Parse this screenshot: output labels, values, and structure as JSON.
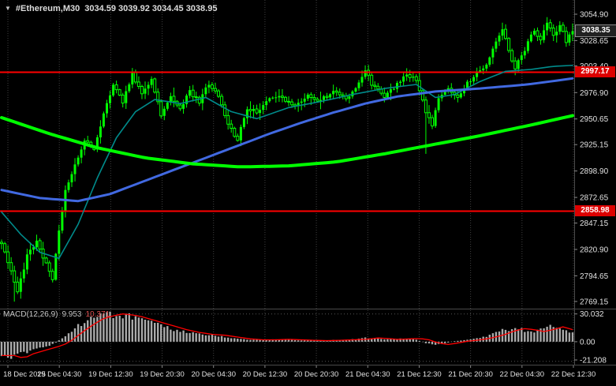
{
  "header": {
    "marker_icon": "down-triangle",
    "title": "#Ethereum,M30",
    "ohlc": "3034.59 3039.92 3034.45 3038.95"
  },
  "price_axis": {
    "labels": [
      "3054.90",
      "3028.65",
      "3003.40",
      "2976.90",
      "2950.65",
      "2925.15",
      "2898.90",
      "2872.65",
      "2847.15",
      "2820.90",
      "2794.65",
      "2769.15"
    ],
    "current_price": "3038.35",
    "level_tags": [
      "2997.17",
      "2858.98"
    ]
  },
  "time_axis": {
    "labels": [
      "18 Dec 2025",
      "19 Dec 04:30",
      "19 Dec 12:30",
      "19 Dec 20:30",
      "20 Dec 04:30",
      "20 Dec 12:30",
      "20 Dec 20:30",
      "21 Dec 04:30",
      "21 Dec 12:30",
      "21 Dec 20:30",
      "22 Dec 04:30",
      "22 Dec 12:30"
    ]
  },
  "colors": {
    "background": "#000000",
    "grid": "#404040",
    "candle": "#00ff00",
    "level_line": "#ff0000",
    "macd_histogram": "#aaaaaa",
    "macd_signal": "#ff0000",
    "axis_text": "#e2e2e2",
    "divider": "#4a4a4a",
    "tick": "#888888"
  },
  "chart_data": [
    {
      "type": "candlestick",
      "symbol": "#Ethereum",
      "timeframe": "M30",
      "bars": 180,
      "ylim": [
        2762,
        3069
      ],
      "last_bar_ohlc": [
        3034.59,
        3039.92,
        3034.45,
        3038.95
      ],
      "wick_amp": 6,
      "close_jitter": 4,
      "close_anchors": [
        [
          0,
          2828
        ],
        [
          3,
          2800
        ],
        [
          5,
          2778
        ],
        [
          8,
          2815
        ],
        [
          11,
          2828
        ],
        [
          14,
          2806
        ],
        [
          16,
          2790
        ],
        [
          18,
          2840
        ],
        [
          20,
          2880
        ],
        [
          23,
          2906
        ],
        [
          26,
          2930
        ],
        [
          29,
          2920
        ],
        [
          32,
          2955
        ],
        [
          35,
          2985
        ],
        [
          38,
          2968
        ],
        [
          41,
          2996
        ],
        [
          44,
          2974
        ],
        [
          47,
          2990
        ],
        [
          50,
          2954
        ],
        [
          53,
          2974
        ],
        [
          56,
          2960
        ],
        [
          59,
          2978
        ],
        [
          62,
          2968
        ],
        [
          65,
          2986
        ],
        [
          68,
          2975
        ],
        [
          71,
          2945
        ],
        [
          74,
          2930
        ],
        [
          77,
          2962
        ],
        [
          80,
          2957
        ],
        [
          84,
          2970
        ],
        [
          88,
          2972
        ],
        [
          92,
          2964
        ],
        [
          96,
          2975
        ],
        [
          100,
          2969
        ],
        [
          104,
          2978
        ],
        [
          108,
          2971
        ],
        [
          112,
          2986
        ],
        [
          114,
          3001
        ],
        [
          116,
          2984
        ],
        [
          120,
          2974
        ],
        [
          124,
          2985
        ],
        [
          127,
          2996
        ],
        [
          130,
          2989
        ],
        [
          133,
          2958
        ],
        [
          135,
          2945
        ],
        [
          137,
          2970
        ],
        [
          140,
          2980
        ],
        [
          143,
          2974
        ],
        [
          146,
          2986
        ],
        [
          149,
          2996
        ],
        [
          152,
          3006
        ],
        [
          155,
          3026
        ],
        [
          157,
          3040
        ],
        [
          159,
          3018
        ],
        [
          161,
          3002
        ],
        [
          163,
          3014
        ],
        [
          165,
          3026
        ],
        [
          167,
          3040
        ],
        [
          169,
          3028
        ],
        [
          171,
          3048
        ],
        [
          173,
          3034
        ],
        [
          175,
          3044
        ],
        [
          177,
          3028
        ],
        [
          179,
          3038
        ]
      ],
      "spikes": [
        {
          "i": 4,
          "low": 2769
        },
        {
          "i": 114,
          "high": 3004
        },
        {
          "i": 133,
          "low": 2916
        },
        {
          "i": 171,
          "high": 3052
        }
      ],
      "overlays": [
        {
          "name": "ma-fast-teal",
          "color": "#008b8b",
          "width": 1.6,
          "anchors": [
            [
              0,
              2858
            ],
            [
              6,
              2836
            ],
            [
              12,
              2818
            ],
            [
              18,
              2812
            ],
            [
              24,
              2846
            ],
            [
              30,
              2892
            ],
            [
              36,
              2932
            ],
            [
              42,
              2958
            ],
            [
              48,
              2970
            ],
            [
              56,
              2966
            ],
            [
              64,
              2972
            ],
            [
              72,
              2958
            ],
            [
              80,
              2951
            ],
            [
              90,
              2962
            ],
            [
              100,
              2968
            ],
            [
              110,
              2975
            ],
            [
              120,
              2981
            ],
            [
              130,
              2985
            ],
            [
              136,
              2972
            ],
            [
              142,
              2975
            ],
            [
              150,
              2988
            ],
            [
              158,
              2998
            ],
            [
              166,
              3000
            ],
            [
              173,
              3003
            ],
            [
              179,
              3004
            ]
          ]
        },
        {
          "name": "ma-medium-blue",
          "color": "#4169e1",
          "width": 3,
          "anchors": [
            [
              0,
              2880
            ],
            [
              12,
              2872
            ],
            [
              24,
              2869
            ],
            [
              34,
              2876
            ],
            [
              44,
              2888
            ],
            [
              54,
              2900
            ],
            [
              64,
              2912
            ],
            [
              74,
              2924
            ],
            [
              84,
              2936
            ],
            [
              94,
              2947
            ],
            [
              104,
              2957
            ],
            [
              114,
              2966
            ],
            [
              124,
              2973
            ],
            [
              136,
              2978
            ],
            [
              150,
              2981
            ],
            [
              165,
              2985
            ],
            [
              179,
              2991
            ]
          ]
        },
        {
          "name": "ma-slow-green",
          "color": "#00ff00",
          "width": 4,
          "anchors": [
            [
              0,
              2952
            ],
            [
              15,
              2936
            ],
            [
              30,
              2922
            ],
            [
              45,
              2912
            ],
            [
              60,
              2906
            ],
            [
              75,
              2903
            ],
            [
              90,
              2904
            ],
            [
              105,
              2908
            ],
            [
              120,
              2916
            ],
            [
              135,
              2925
            ],
            [
              150,
              2934
            ],
            [
              165,
              2944
            ],
            [
              179,
              2954
            ]
          ]
        }
      ],
      "hlines": [
        {
          "value": 2997.17,
          "color": "#ff0000"
        },
        {
          "value": 2858.98,
          "color": "#ff0000"
        }
      ]
    },
    {
      "type": "macd-histogram",
      "label": "MACD(12,26,9)",
      "main_value": "9.953",
      "signal_value": "10.371",
      "ylim": [
        -24,
        34
      ],
      "axis_labels": [
        "30.032",
        "0.00",
        "-21.208"
      ],
      "signal_lag_bars": 4,
      "anchors": [
        [
          0,
          -15
        ],
        [
          3,
          -18
        ],
        [
          6,
          -13
        ],
        [
          9,
          -10
        ],
        [
          12,
          -7
        ],
        [
          15,
          -4
        ],
        [
          17,
          -1
        ],
        [
          19,
          4
        ],
        [
          22,
          12
        ],
        [
          25,
          19
        ],
        [
          28,
          25
        ],
        [
          31,
          28
        ],
        [
          34,
          30
        ],
        [
          37,
          29
        ],
        [
          40,
          27
        ],
        [
          43,
          24
        ],
        [
          46,
          21
        ],
        [
          50,
          17
        ],
        [
          54,
          13
        ],
        [
          58,
          10
        ],
        [
          62,
          8
        ],
        [
          66,
          7
        ],
        [
          70,
          5
        ],
        [
          74,
          3
        ],
        [
          78,
          2
        ],
        [
          82,
          2
        ],
        [
          86,
          2.5
        ],
        [
          90,
          2
        ],
        [
          94,
          1.5
        ],
        [
          98,
          1.2
        ],
        [
          102,
          1.5
        ],
        [
          106,
          2
        ],
        [
          110,
          2.5
        ],
        [
          114,
          4
        ],
        [
          117,
          3.5
        ],
        [
          120,
          2.5
        ],
        [
          124,
          3
        ],
        [
          127,
          3.5
        ],
        [
          130,
          2
        ],
        [
          133,
          -1.5
        ],
        [
          136,
          -3
        ],
        [
          139,
          -1.5
        ],
        [
          142,
          0.5
        ],
        [
          145,
          1.5
        ],
        [
          148,
          3
        ],
        [
          151,
          5
        ],
        [
          154,
          8
        ],
        [
          157,
          12
        ],
        [
          160,
          14
        ],
        [
          163,
          13
        ],
        [
          166,
          11
        ],
        [
          169,
          13
        ],
        [
          172,
          16
        ],
        [
          175,
          13
        ],
        [
          177,
          11
        ],
        [
          179,
          10
        ]
      ]
    }
  ]
}
